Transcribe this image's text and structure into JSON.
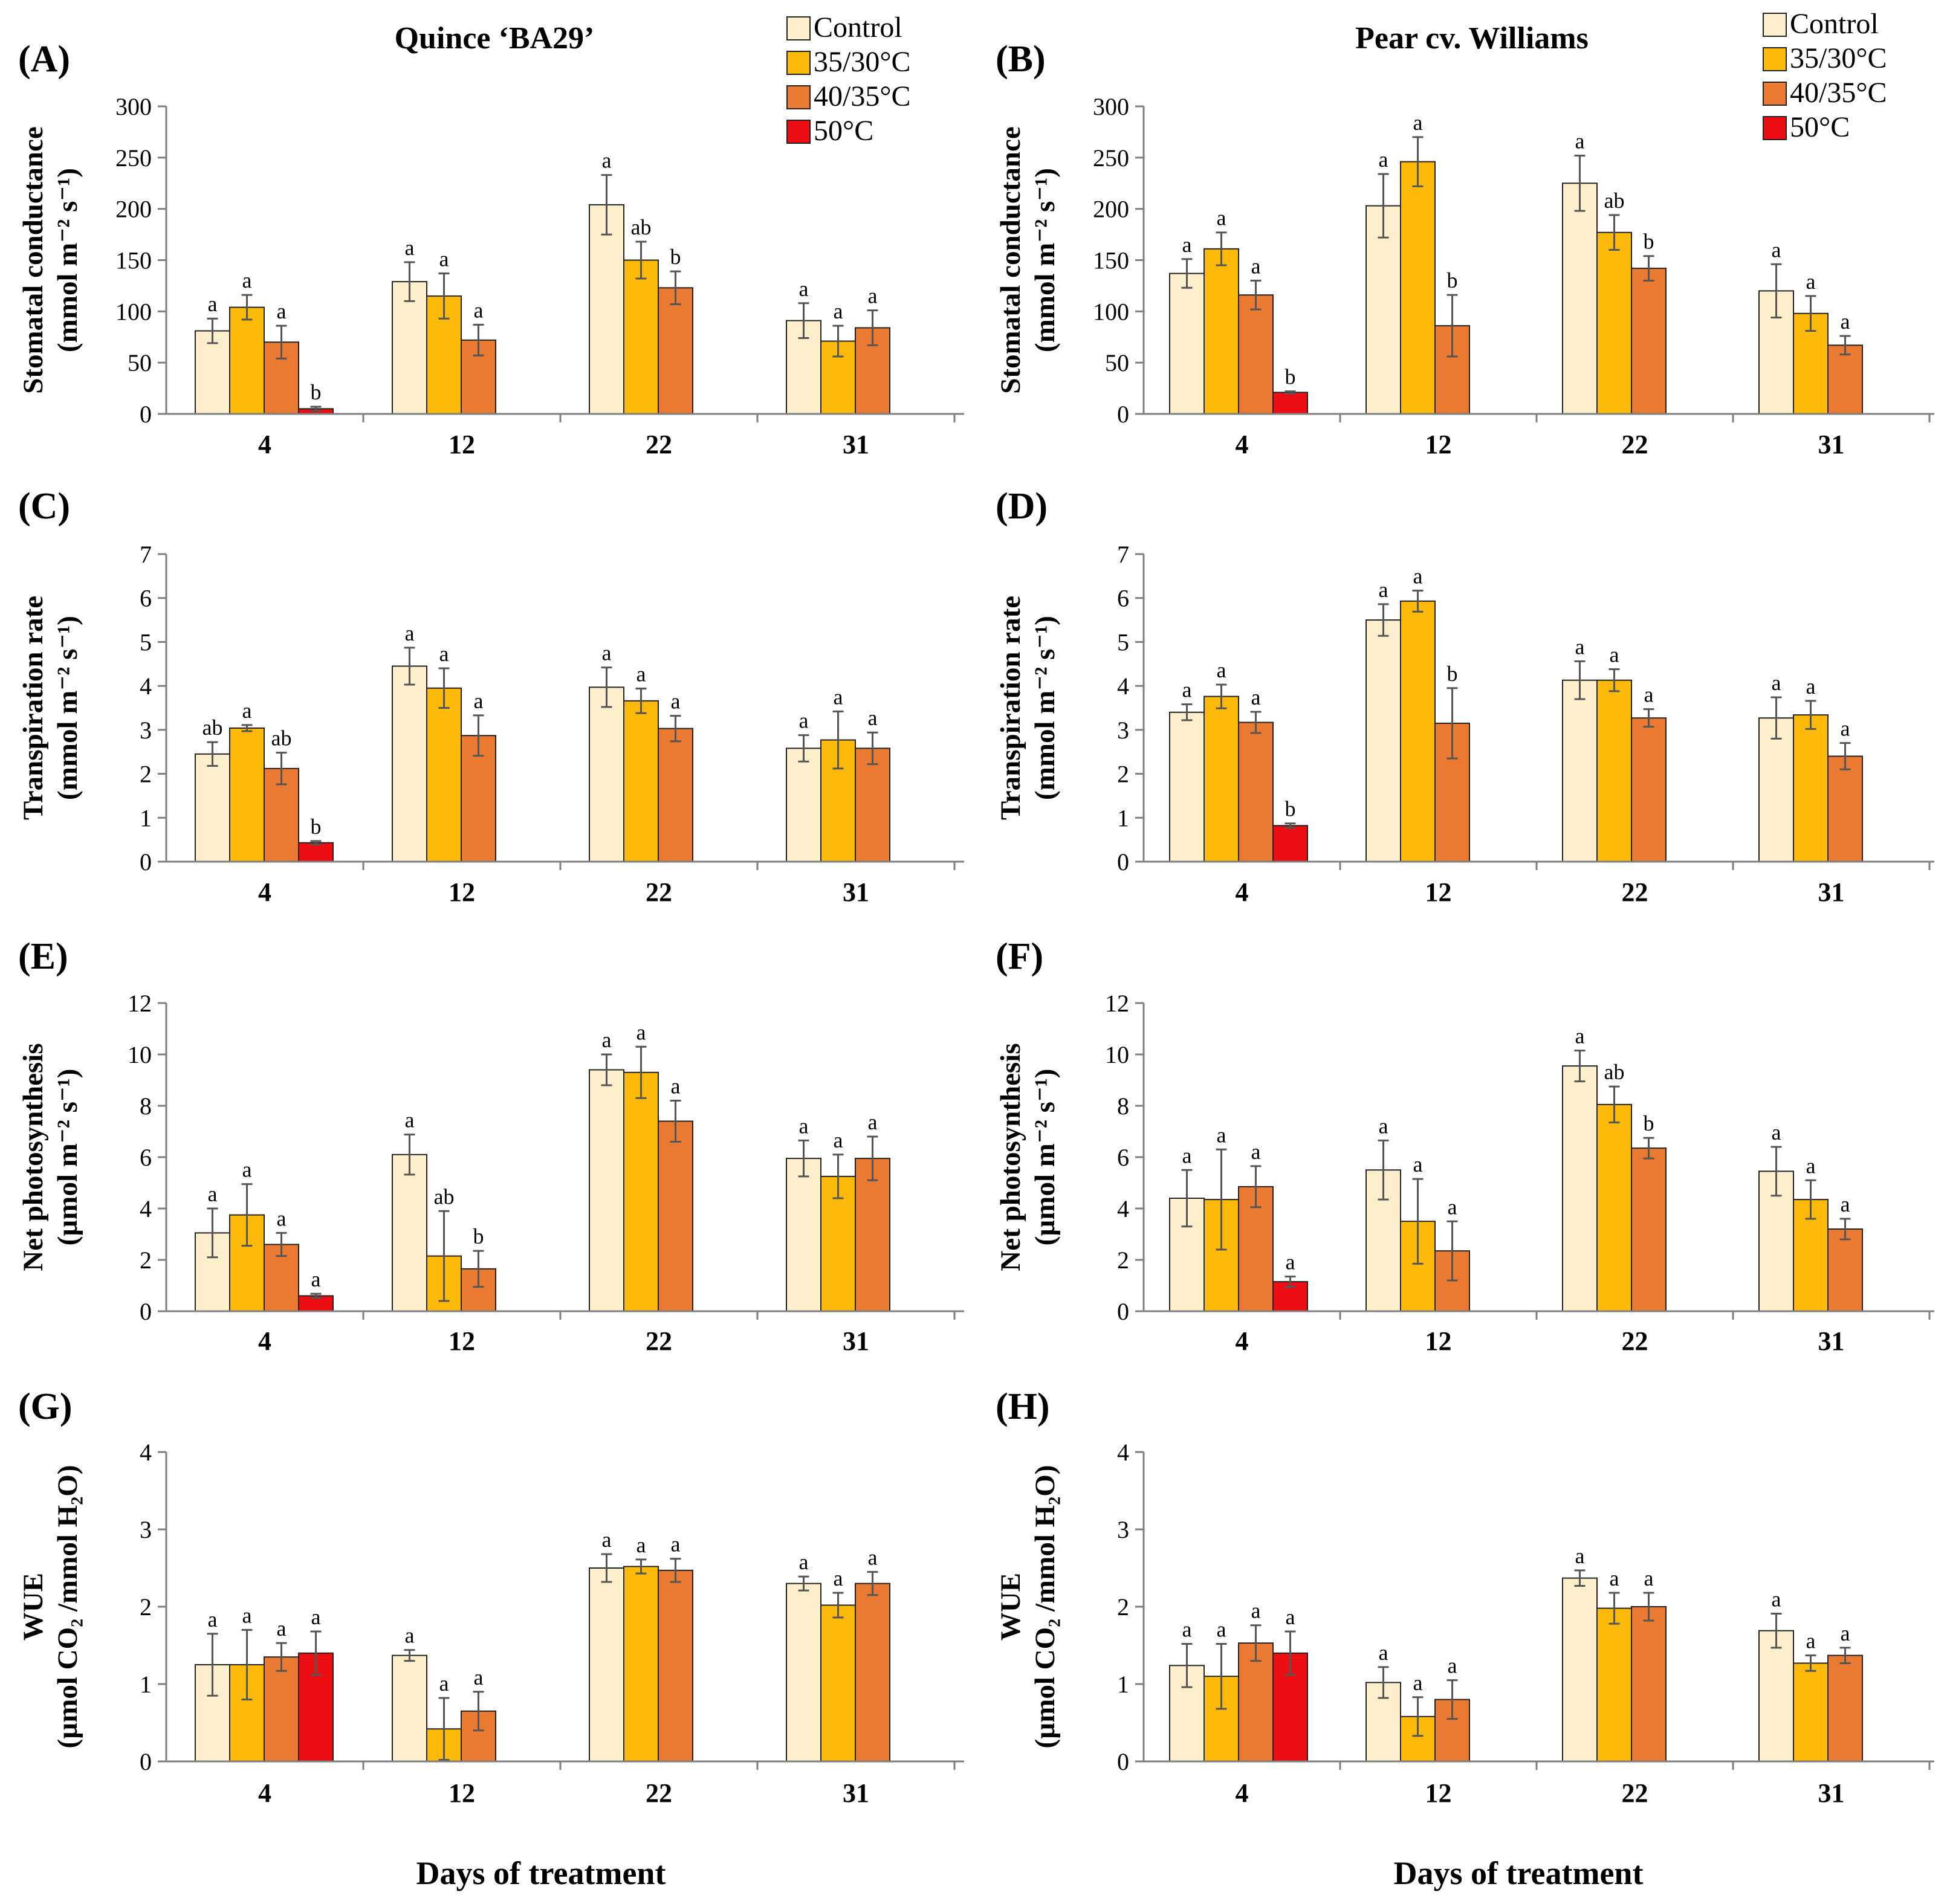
{
  "colors": {
    "Control": "#FDEFCB",
    "35/30°C": "#FDBA0A",
    "40/35°C": "#EA7A31",
    "50°C": "#EC0E12",
    "axis": "#7f7f7f",
    "bar_outline": "#222222",
    "error_bar": "#555555"
  },
  "icons": {
    "legend_swatch": "legend-swatch-icon"
  },
  "figure": {
    "titles": {
      "quince": "Quince ‘BA29’",
      "pear": "Pear cv. Williams"
    },
    "xlabel": "Days of treatment",
    "legend": [
      "Control",
      "35/30°C",
      "40/35°C",
      "50°C"
    ]
  },
  "chart_data": [
    {
      "id": "A",
      "type": "bar",
      "panel_label": "(A)",
      "ylabel_line1": "Stomatal conductance",
      "ylabel_line2": "(mmol m⁻² s⁻¹)",
      "ylim": [
        0,
        300
      ],
      "yticks": [
        0,
        50,
        100,
        150,
        200,
        250,
        300
      ],
      "categories": [
        "4",
        "12",
        "22",
        "31"
      ],
      "series": [
        {
          "name": "Control",
          "values": [
            81,
            129,
            204,
            91
          ],
          "errors": [
            12,
            19,
            29,
            17
          ],
          "letters": [
            "a",
            "a",
            "a",
            "a"
          ]
        },
        {
          "name": "35/30°C",
          "values": [
            104,
            115,
            150,
            71
          ],
          "errors": [
            12,
            22,
            18,
            15
          ],
          "letters": [
            "a",
            "a",
            "ab",
            "a"
          ]
        },
        {
          "name": "40/35°C",
          "values": [
            70,
            72,
            123,
            84
          ],
          "errors": [
            16,
            15,
            16,
            17
          ],
          "letters": [
            "a",
            "a",
            "b",
            "a"
          ]
        },
        {
          "name": "50°C",
          "values": [
            5,
            null,
            null,
            null
          ],
          "errors": [
            2,
            null,
            null,
            null
          ],
          "letters": [
            "b",
            null,
            null,
            null
          ]
        }
      ]
    },
    {
      "id": "B",
      "type": "bar",
      "panel_label": "(B)",
      "ylabel_line1": "Stomatal conductance",
      "ylabel_line2": "(mmol m⁻² s⁻¹)",
      "ylim": [
        0,
        300
      ],
      "yticks": [
        0,
        50,
        100,
        150,
        200,
        250,
        300
      ],
      "categories": [
        "4",
        "12",
        "22",
        "31"
      ],
      "series": [
        {
          "name": "Control",
          "values": [
            137,
            203,
            225,
            120
          ],
          "errors": [
            14,
            31,
            27,
            26
          ],
          "letters": [
            "a",
            "a",
            "a",
            "a"
          ]
        },
        {
          "name": "35/30°C",
          "values": [
            161,
            246,
            177,
            98
          ],
          "errors": [
            16,
            24,
            17,
            17
          ],
          "letters": [
            "a",
            "a",
            "ab",
            "a"
          ]
        },
        {
          "name": "40/35°C",
          "values": [
            116,
            86,
            142,
            67
          ],
          "errors": [
            14,
            30,
            12,
            9
          ],
          "letters": [
            "a",
            "b",
            "b",
            "a"
          ]
        },
        {
          "name": "50°C",
          "values": [
            21,
            null,
            null,
            null
          ],
          "errors": [
            1,
            null,
            null,
            null
          ],
          "letters": [
            "b",
            null,
            null,
            null
          ]
        }
      ]
    },
    {
      "id": "C",
      "type": "bar",
      "panel_label": "(C)",
      "ylabel_line1": "Transpiration rate",
      "ylabel_line2": "(mmol m⁻² s⁻¹)",
      "ylim": [
        0,
        7
      ],
      "yticks": [
        0,
        1,
        2,
        3,
        4,
        5,
        6,
        7
      ],
      "categories": [
        "4",
        "12",
        "22",
        "31"
      ],
      "series": [
        {
          "name": "Control",
          "values": [
            2.45,
            4.45,
            3.97,
            2.58
          ],
          "errors": [
            0.27,
            0.42,
            0.45,
            0.3
          ],
          "letters": [
            "ab",
            "a",
            "a",
            "a"
          ]
        },
        {
          "name": "35/30°C",
          "values": [
            3.04,
            3.95,
            3.66,
            2.77
          ],
          "errors": [
            0.07,
            0.45,
            0.28,
            0.65
          ],
          "letters": [
            "a",
            "a",
            "a",
            "a"
          ]
        },
        {
          "name": "40/35°C",
          "values": [
            2.12,
            2.87,
            3.03,
            2.58
          ],
          "errors": [
            0.36,
            0.46,
            0.29,
            0.36
          ],
          "letters": [
            "ab",
            "a",
            "a",
            "a"
          ]
        },
        {
          "name": "50°C",
          "values": [
            0.43,
            null,
            null,
            null
          ],
          "errors": [
            0.04,
            null,
            null,
            null
          ],
          "letters": [
            "b",
            null,
            null,
            null
          ]
        }
      ]
    },
    {
      "id": "D",
      "type": "bar",
      "panel_label": "(D)",
      "ylabel_line1": "Transpiration rate",
      "ylabel_line2": "(mmol m⁻² s⁻¹)",
      "ylim": [
        0,
        7
      ],
      "yticks": [
        0,
        1,
        2,
        3,
        4,
        5,
        6,
        7
      ],
      "categories": [
        "4",
        "12",
        "22",
        "31"
      ],
      "series": [
        {
          "name": "Control",
          "values": [
            3.4,
            5.5,
            4.13,
            3.27
          ],
          "errors": [
            0.18,
            0.36,
            0.43,
            0.47
          ],
          "letters": [
            "a",
            "a",
            "a",
            "a"
          ]
        },
        {
          "name": "35/30°C",
          "values": [
            3.76,
            5.93,
            4.13,
            3.34
          ],
          "errors": [
            0.27,
            0.24,
            0.25,
            0.32
          ],
          "letters": [
            "a",
            "a",
            "a",
            "a"
          ]
        },
        {
          "name": "40/35°C",
          "values": [
            3.17,
            3.15,
            3.27,
            2.4
          ],
          "errors": [
            0.24,
            0.8,
            0.2,
            0.3
          ],
          "letters": [
            "a",
            "b",
            "a",
            "a"
          ]
        },
        {
          "name": "50°C",
          "values": [
            0.82,
            null,
            null,
            null
          ],
          "errors": [
            0.05,
            null,
            null,
            null
          ],
          "letters": [
            "b",
            null,
            null,
            null
          ]
        }
      ]
    },
    {
      "id": "E",
      "type": "bar",
      "panel_label": "(E)",
      "ylabel_line1": "Net photosynthesis",
      "ylabel_line2": "(µmol m⁻² s⁻¹)",
      "ylim": [
        0,
        12
      ],
      "yticks": [
        0,
        2,
        4,
        6,
        8,
        10,
        12
      ],
      "categories": [
        "4",
        "12",
        "22",
        "31"
      ],
      "series": [
        {
          "name": "Control",
          "values": [
            3.05,
            6.1,
            9.4,
            5.95
          ],
          "errors": [
            0.95,
            0.78,
            0.6,
            0.7
          ],
          "letters": [
            "a",
            "a",
            "a",
            "a"
          ]
        },
        {
          "name": "35/30°C",
          "values": [
            3.75,
            2.15,
            9.3,
            5.25
          ],
          "errors": [
            1.2,
            1.75,
            1.0,
            0.85
          ],
          "letters": [
            "a",
            "ab",
            "a",
            "a"
          ]
        },
        {
          "name": "40/35°C",
          "values": [
            2.6,
            1.65,
            7.4,
            5.95
          ],
          "errors": [
            0.45,
            0.7,
            0.8,
            0.85
          ],
          "letters": [
            "a",
            "b",
            "a",
            "a"
          ]
        },
        {
          "name": "50°C",
          "values": [
            0.6,
            null,
            null,
            null
          ],
          "errors": [
            0.08,
            null,
            null,
            null
          ],
          "letters": [
            "a",
            null,
            null,
            null
          ]
        }
      ]
    },
    {
      "id": "F",
      "type": "bar",
      "panel_label": "(F)",
      "ylabel_line1": "Net photosynthesis",
      "ylabel_line2": "(µmol m⁻² s⁻¹)",
      "ylim": [
        0,
        12
      ],
      "yticks": [
        0,
        2,
        4,
        6,
        8,
        10,
        12
      ],
      "categories": [
        "4",
        "12",
        "22",
        "31"
      ],
      "series": [
        {
          "name": "Control",
          "values": [
            4.4,
            5.5,
            9.55,
            5.45
          ],
          "errors": [
            1.1,
            1.15,
            0.6,
            0.95
          ],
          "letters": [
            "a",
            "a",
            "a",
            "a"
          ]
        },
        {
          "name": "35/30°C",
          "values": [
            4.35,
            3.5,
            8.05,
            4.35
          ],
          "errors": [
            1.95,
            1.65,
            0.7,
            0.75
          ],
          "letters": [
            "a",
            "a",
            "ab",
            "a"
          ]
        },
        {
          "name": "40/35°C",
          "values": [
            4.85,
            2.35,
            6.35,
            3.2
          ],
          "errors": [
            0.8,
            1.15,
            0.4,
            0.4
          ],
          "letters": [
            "a",
            "a",
            "b",
            "a"
          ]
        },
        {
          "name": "50°C",
          "values": [
            1.15,
            null,
            null,
            null
          ],
          "errors": [
            0.2,
            null,
            null,
            null
          ],
          "letters": [
            "a",
            null,
            null,
            null
          ]
        }
      ]
    },
    {
      "id": "G",
      "type": "bar",
      "panel_label": "(G)",
      "ylabel_line1": "WUE",
      "ylabel_line2": "(µmol CO₂ /mmol H₂O)",
      "ylim": [
        0,
        4
      ],
      "yticks": [
        0,
        1,
        2,
        3,
        4
      ],
      "categories": [
        "4",
        "12",
        "22",
        "31"
      ],
      "series": [
        {
          "name": "Control",
          "values": [
            1.25,
            1.37,
            2.5,
            2.3
          ],
          "errors": [
            0.4,
            0.07,
            0.18,
            0.09
          ],
          "letters": [
            "a",
            "a",
            "a",
            "a"
          ]
        },
        {
          "name": "35/30°C",
          "values": [
            1.25,
            0.42,
            2.52,
            2.02
          ],
          "errors": [
            0.45,
            0.4,
            0.09,
            0.16
          ],
          "letters": [
            "a",
            "a",
            "a",
            "a"
          ]
        },
        {
          "name": "40/35°C",
          "values": [
            1.35,
            0.65,
            2.47,
            2.3
          ],
          "errors": [
            0.18,
            0.25,
            0.15,
            0.15
          ],
          "letters": [
            "a",
            "a",
            "a",
            "a"
          ]
        },
        {
          "name": "50°C",
          "values": [
            1.4,
            null,
            null,
            null
          ],
          "errors": [
            0.28,
            null,
            null,
            null
          ],
          "letters": [
            "a",
            null,
            null,
            null
          ]
        }
      ]
    },
    {
      "id": "H",
      "type": "bar",
      "panel_label": "(H)",
      "ylabel_line1": "WUE",
      "ylabel_line2": "(µmol CO₂ /mmol H₂O)",
      "ylim": [
        0,
        4
      ],
      "yticks": [
        0,
        1,
        2,
        3,
        4
      ],
      "categories": [
        "4",
        "12",
        "22",
        "31"
      ],
      "series": [
        {
          "name": "Control",
          "values": [
            1.24,
            1.02,
            2.37,
            1.69
          ],
          "errors": [
            0.28,
            0.2,
            0.1,
            0.22
          ],
          "letters": [
            "a",
            "a",
            "a",
            "a"
          ]
        },
        {
          "name": "35/30°C",
          "values": [
            1.1,
            0.58,
            1.98,
            1.27
          ],
          "errors": [
            0.42,
            0.25,
            0.2,
            0.1
          ],
          "letters": [
            "a",
            "a",
            "a",
            "a"
          ]
        },
        {
          "name": "40/35°C",
          "values": [
            1.53,
            0.8,
            2.0,
            1.37
          ],
          "errors": [
            0.23,
            0.25,
            0.18,
            0.1
          ],
          "letters": [
            "a",
            "a",
            "a",
            "a"
          ]
        },
        {
          "name": "50°C",
          "values": [
            1.4,
            null,
            null,
            null
          ],
          "errors": [
            0.28,
            null,
            null,
            null
          ],
          "letters": [
            "a",
            null,
            null,
            null
          ]
        }
      ]
    }
  ]
}
